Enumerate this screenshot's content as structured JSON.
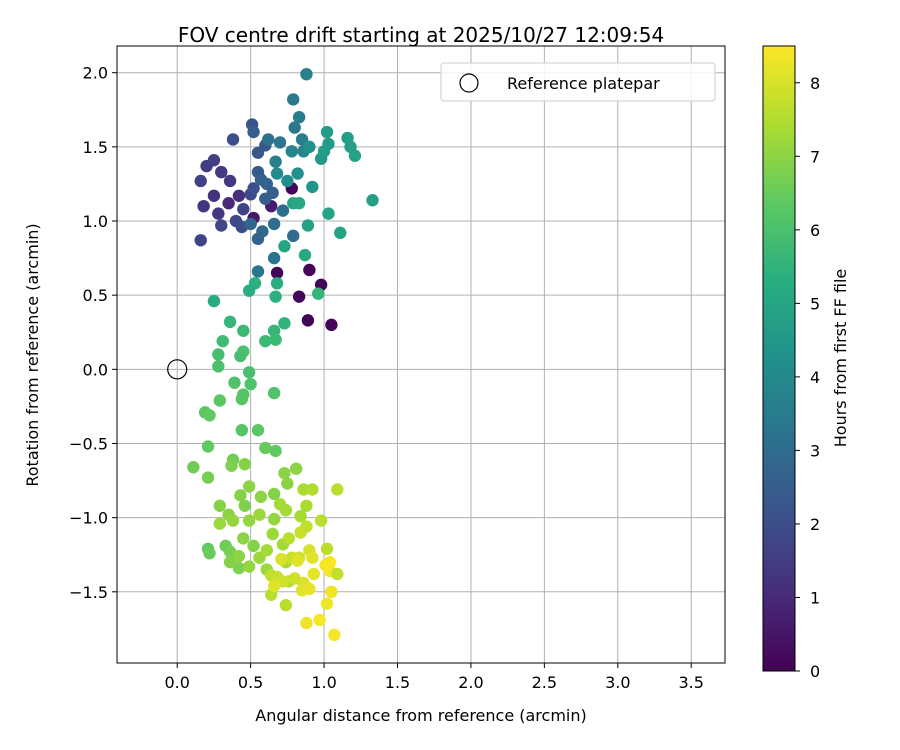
{
  "chart_data": {
    "type": "scatter",
    "title": "FOV centre drift starting at 2025/10/27 12:09:54",
    "xlabel": "Angular distance from reference (arcmin)",
    "ylabel": "Rotation from reference (arcmin)",
    "xlim": [
      -0.41,
      3.73
    ],
    "ylim": [
      -1.98,
      2.18
    ],
    "xticks": [
      0.0,
      0.5,
      1.0,
      1.5,
      2.0,
      2.5,
      3.0,
      3.5
    ],
    "xtick_labels": [
      "0.0",
      "0.5",
      "1.0",
      "1.5",
      "2.0",
      "2.5",
      "3.0",
      "3.5"
    ],
    "yticks": [
      -1.5,
      -1.0,
      -0.5,
      0.0,
      0.5,
      1.0,
      1.5,
      2.0
    ],
    "ytick_labels": [
      "−1.5",
      "−1.0",
      "−0.5",
      "0.0",
      "0.5",
      "1.0",
      "1.5",
      "2.0"
    ],
    "grid": true,
    "legend": {
      "position": "top-right",
      "entries": [
        "Reference platepar"
      ]
    },
    "reference_point": {
      "x": 0.0,
      "y": 0.0,
      "label": "Reference platepar"
    },
    "colorbar": {
      "label": "Hours from first FF file",
      "colormap": "viridis",
      "range": [
        0,
        8.5
      ],
      "ticks": [
        0,
        1,
        2,
        3,
        4,
        5,
        6,
        7,
        8
      ],
      "tick_labels": [
        "0",
        "1",
        "2",
        "3",
        "4",
        "5",
        "6",
        "7",
        "8"
      ]
    },
    "series": [
      {
        "points": [
          [
            0.78,
            1.22,
            0.1
          ],
          [
            0.68,
            0.65,
            0.1
          ],
          [
            0.83,
            0.49,
            0.15
          ],
          [
            0.9,
            0.67,
            0.1
          ],
          [
            0.98,
            0.57,
            0.1
          ],
          [
            0.89,
            0.33,
            0.1
          ],
          [
            1.05,
            0.3,
            0.1
          ],
          [
            0.64,
            1.1,
            0.7
          ],
          [
            0.52,
            1.02,
            0.6
          ],
          [
            0.35,
            1.12,
            1.0
          ],
          [
            0.42,
            1.17,
            1.1
          ],
          [
            0.25,
            1.17,
            1.2
          ],
          [
            0.18,
            1.1,
            1.3
          ],
          [
            0.28,
            1.05,
            1.3
          ],
          [
            0.36,
            1.27,
            1.4
          ],
          [
            0.3,
            1.33,
            1.4
          ],
          [
            0.2,
            1.37,
            1.5
          ],
          [
            0.16,
            1.27,
            1.6
          ],
          [
            0.25,
            1.41,
            1.6
          ],
          [
            0.16,
            0.87,
            1.7
          ],
          [
            0.3,
            0.97,
            1.8
          ],
          [
            0.4,
            1.0,
            1.8
          ],
          [
            0.45,
            1.08,
            1.7
          ],
          [
            0.5,
            1.18,
            1.9
          ],
          [
            0.44,
            0.96,
            2.0
          ],
          [
            0.52,
            1.22,
            2.1
          ],
          [
            0.38,
            1.55,
            2.0
          ],
          [
            0.51,
            1.65,
            2.2
          ],
          [
            0.55,
            1.46,
            2.3
          ],
          [
            0.6,
            1.51,
            2.4
          ],
          [
            0.52,
            1.6,
            2.5
          ],
          [
            0.55,
            1.33,
            2.4
          ],
          [
            0.57,
            1.28,
            2.6
          ],
          [
            0.61,
            1.25,
            2.7
          ],
          [
            0.6,
            1.15,
            2.5
          ],
          [
            0.65,
            1.19,
            2.6
          ],
          [
            0.55,
            0.88,
            2.7
          ],
          [
            0.5,
            0.98,
            2.8
          ],
          [
            0.58,
            0.93,
            2.9
          ],
          [
            0.66,
            0.98,
            3.0
          ],
          [
            0.72,
            1.07,
            3.1
          ],
          [
            0.79,
            0.9,
            3.0
          ],
          [
            0.66,
            0.75,
            3.2
          ],
          [
            0.55,
            0.66,
            3.3
          ],
          [
            0.62,
            1.55,
            3.2
          ],
          [
            0.7,
            1.53,
            3.3
          ],
          [
            0.8,
            1.63,
            3.4
          ],
          [
            0.83,
            1.7,
            3.5
          ],
          [
            0.85,
            1.55,
            3.6
          ],
          [
            0.79,
            1.82,
            3.5
          ],
          [
            0.88,
            1.99,
            3.7
          ],
          [
            0.78,
            1.47,
            3.8
          ],
          [
            0.86,
            1.47,
            3.9
          ],
          [
            0.67,
            1.4,
            3.7
          ],
          [
            0.68,
            1.32,
            4.0
          ],
          [
            0.75,
            1.27,
            4.1
          ],
          [
            0.82,
            1.32,
            4.2
          ],
          [
            0.9,
            1.5,
            4.3
          ],
          [
            0.92,
            1.23,
            4.4
          ],
          [
            0.98,
            1.42,
            4.5
          ],
          [
            1.02,
            1.6,
            4.6
          ],
          [
            1.03,
            1.52,
            4.6
          ],
          [
            1.0,
            1.47,
            4.7
          ],
          [
            1.16,
            1.56,
            4.7
          ],
          [
            1.18,
            1.5,
            4.8
          ],
          [
            1.21,
            1.44,
            4.9
          ],
          [
            1.33,
            1.14,
            4.8
          ],
          [
            1.11,
            0.92,
            4.9
          ],
          [
            1.03,
            1.05,
            4.9
          ],
          [
            0.89,
            0.97,
            4.8
          ],
          [
            0.79,
            1.12,
            5.0
          ],
          [
            0.83,
            1.12,
            5.1
          ],
          [
            0.73,
            0.83,
            5.0
          ],
          [
            0.87,
            0.77,
            5.1
          ],
          [
            0.68,
            0.58,
            5.3
          ],
          [
            0.67,
            0.49,
            5.4
          ],
          [
            0.53,
            0.58,
            5.4
          ],
          [
            0.49,
            0.53,
            5.3
          ],
          [
            0.25,
            0.46,
            5.2
          ],
          [
            0.96,
            0.51,
            5.6
          ],
          [
            0.73,
            0.31,
            5.5
          ],
          [
            0.66,
            0.26,
            5.6
          ],
          [
            0.6,
            0.19,
            5.7
          ],
          [
            0.67,
            0.2,
            5.7
          ],
          [
            0.36,
            0.32,
            5.6
          ],
          [
            0.45,
            0.26,
            5.7
          ],
          [
            0.31,
            0.19,
            5.8
          ],
          [
            0.28,
            0.1,
            5.9
          ],
          [
            0.43,
            0.09,
            5.9
          ],
          [
            0.45,
            0.12,
            6.0
          ],
          [
            0.28,
            0.02,
            6.0
          ],
          [
            0.49,
            -0.02,
            6.0
          ],
          [
            0.5,
            -0.1,
            6.1
          ],
          [
            0.39,
            -0.09,
            6.1
          ],
          [
            0.45,
            -0.17,
            6.2
          ],
          [
            0.44,
            -0.2,
            6.2
          ],
          [
            0.29,
            -0.21,
            6.3
          ],
          [
            0.66,
            -0.16,
            6.1
          ],
          [
            0.19,
            -0.29,
            6.3
          ],
          [
            0.22,
            -0.31,
            6.4
          ],
          [
            0.44,
            -0.41,
            6.2
          ],
          [
            0.55,
            -0.41,
            6.3
          ],
          [
            0.21,
            -0.52,
            6.4
          ],
          [
            0.6,
            -0.53,
            6.5
          ],
          [
            0.67,
            -0.55,
            6.4
          ],
          [
            0.11,
            -0.66,
            6.6
          ],
          [
            0.38,
            -0.61,
            6.6
          ],
          [
            0.21,
            -0.73,
            6.7
          ],
          [
            0.46,
            -0.64,
            6.9
          ],
          [
            0.37,
            -0.65,
            6.8
          ],
          [
            0.66,
            -0.84,
            6.9
          ],
          [
            0.49,
            -0.79,
            7.0
          ],
          [
            0.73,
            -0.7,
            7.0
          ],
          [
            0.81,
            -0.67,
            7.0
          ],
          [
            0.75,
            -0.77,
            7.0
          ],
          [
            0.43,
            -0.85,
            6.9
          ],
          [
            0.46,
            -0.92,
            6.8
          ],
          [
            0.57,
            -0.86,
            7.0
          ],
          [
            0.29,
            -0.92,
            6.9
          ],
          [
            0.35,
            -0.98,
            7.0
          ],
          [
            0.38,
            -1.02,
            7.1
          ],
          [
            0.29,
            -1.04,
            7.2
          ],
          [
            0.49,
            -1.02,
            7.1
          ],
          [
            0.56,
            -0.98,
            7.2
          ],
          [
            0.66,
            -1.01,
            7.1
          ],
          [
            0.7,
            -0.91,
            7.3
          ],
          [
            0.74,
            -0.95,
            7.3
          ],
          [
            0.86,
            -0.81,
            7.4
          ],
          [
            0.92,
            -0.81,
            7.5
          ],
          [
            0.98,
            -1.02,
            7.6
          ],
          [
            1.09,
            -0.81,
            7.6
          ],
          [
            0.84,
            -0.99,
            7.4
          ],
          [
            0.88,
            -0.92,
            7.4
          ],
          [
            0.21,
            -1.21,
            6.4
          ],
          [
            0.22,
            -1.24,
            6.5
          ],
          [
            0.33,
            -1.19,
            6.6
          ],
          [
            0.36,
            -1.23,
            6.7
          ],
          [
            0.36,
            -1.3,
            6.9
          ],
          [
            0.42,
            -1.34,
            6.8
          ],
          [
            0.42,
            -1.26,
            7.0
          ],
          [
            0.45,
            -1.14,
            7.0
          ],
          [
            0.52,
            -1.19,
            6.9
          ],
          [
            0.49,
            -1.33,
            7.1
          ],
          [
            0.56,
            -1.27,
            7.2
          ],
          [
            0.61,
            -1.35,
            7.2
          ],
          [
            0.61,
            -1.22,
            7.3
          ],
          [
            0.65,
            -1.11,
            7.2
          ],
          [
            0.72,
            -1.18,
            7.3
          ],
          [
            0.74,
            -1.3,
            7.4
          ],
          [
            0.76,
            -1.43,
            7.5
          ],
          [
            0.74,
            -1.59,
            7.6
          ],
          [
            0.64,
            -1.52,
            7.6
          ],
          [
            0.64,
            -1.39,
            7.7
          ],
          [
            0.68,
            -1.4,
            7.8
          ],
          [
            0.72,
            -1.43,
            7.9
          ],
          [
            0.78,
            -1.27,
            7.8
          ],
          [
            0.83,
            -1.27,
            7.9
          ],
          [
            0.86,
            -1.44,
            8.0
          ],
          [
            0.85,
            -1.49,
            8.1
          ],
          [
            0.9,
            -1.48,
            8.2
          ],
          [
            0.88,
            -1.71,
            8.3
          ],
          [
            0.97,
            -1.69,
            8.4
          ],
          [
            1.02,
            -1.58,
            8.3
          ],
          [
            1.04,
            -1.36,
            8.4
          ],
          [
            1.04,
            -1.3,
            8.5
          ],
          [
            1.01,
            -1.32,
            8.4
          ],
          [
            1.05,
            -1.5,
            8.3
          ],
          [
            1.07,
            -1.79,
            8.4
          ],
          [
            1.02,
            -1.21,
            7.6
          ],
          [
            1.09,
            -1.38,
            7.7
          ],
          [
            0.9,
            -1.22,
            8.0
          ],
          [
            0.92,
            -1.27,
            8.1
          ],
          [
            0.93,
            -1.38,
            8.2
          ],
          [
            0.82,
            -1.29,
            8.1
          ],
          [
            0.8,
            -1.41,
            7.9
          ],
          [
            0.71,
            -1.28,
            8.0
          ],
          [
            0.66,
            -1.46,
            8.1
          ],
          [
            0.84,
            -1.1,
            7.8
          ],
          [
            0.88,
            -1.06,
            7.7
          ],
          [
            0.76,
            -1.14,
            7.6
          ]
        ]
      }
    ]
  }
}
